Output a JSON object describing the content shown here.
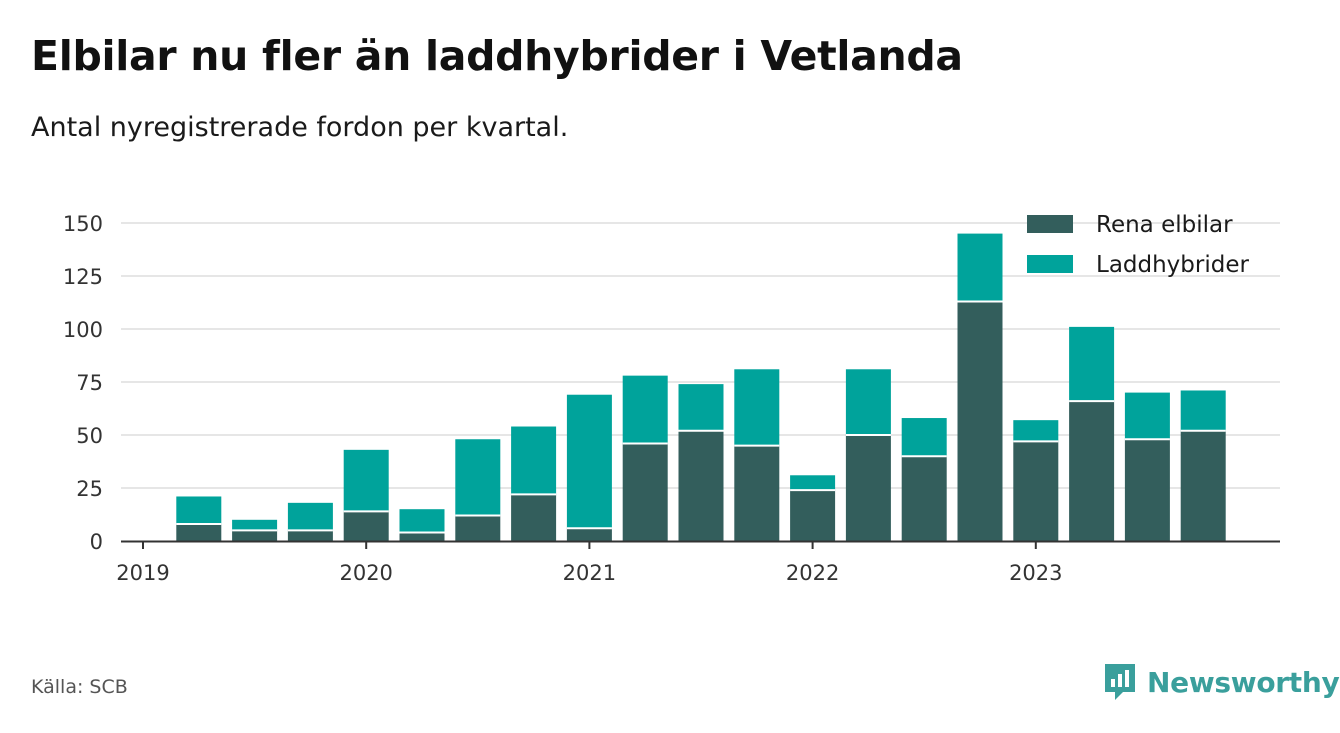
{
  "title": "Elbilar nu fler än laddhybrider i Vetlanda",
  "subtitle": "Antal nyregistrerade fordon per kvartal.",
  "source": "Källa: SCB",
  "brand": "Newsworthy",
  "colors": {
    "rena": "#335e5c",
    "ladd": "#00a39b",
    "grid": "#dddddd",
    "axis": "#333333",
    "brand": "#3a9f9c"
  },
  "chart_data": {
    "type": "bar",
    "stacked": true,
    "title": "Elbilar nu fler än laddhybrider i Vetlanda",
    "subtitle": "Antal nyregistrerade fordon per kvartal.",
    "xlabel": "",
    "ylabel": "",
    "ylim": [
      0,
      150
    ],
    "yticks": [
      0,
      25,
      50,
      75,
      100,
      125,
      150
    ],
    "x_tick_labels": [
      "2019",
      "2020",
      "2021",
      "2022",
      "2023"
    ],
    "categories": [
      "2019Q2",
      "2019Q3",
      "2019Q4",
      "2020Q1",
      "2020Q2",
      "2020Q3",
      "2020Q4",
      "2021Q1",
      "2021Q2",
      "2021Q3",
      "2021Q4",
      "2022Q1",
      "2022Q2",
      "2022Q3",
      "2022Q4",
      "2023Q1",
      "2023Q2",
      "2023Q3",
      "2023Q4"
    ],
    "series": [
      {
        "name": "Rena elbilar",
        "values": [
          8,
          5,
          5,
          14,
          4,
          12,
          22,
          6,
          46,
          52,
          45,
          24,
          50,
          40,
          113,
          47,
          66,
          48,
          52
        ]
      },
      {
        "name": "Laddhybrider",
        "values": [
          13,
          5,
          13,
          29,
          11,
          36,
          32,
          63,
          32,
          22,
          36,
          7,
          31,
          18,
          32,
          10,
          35,
          22,
          19
        ]
      }
    ],
    "legend": [
      "Rena elbilar",
      "Laddhybrider"
    ],
    "legend_position": "top-right",
    "grid": true
  }
}
